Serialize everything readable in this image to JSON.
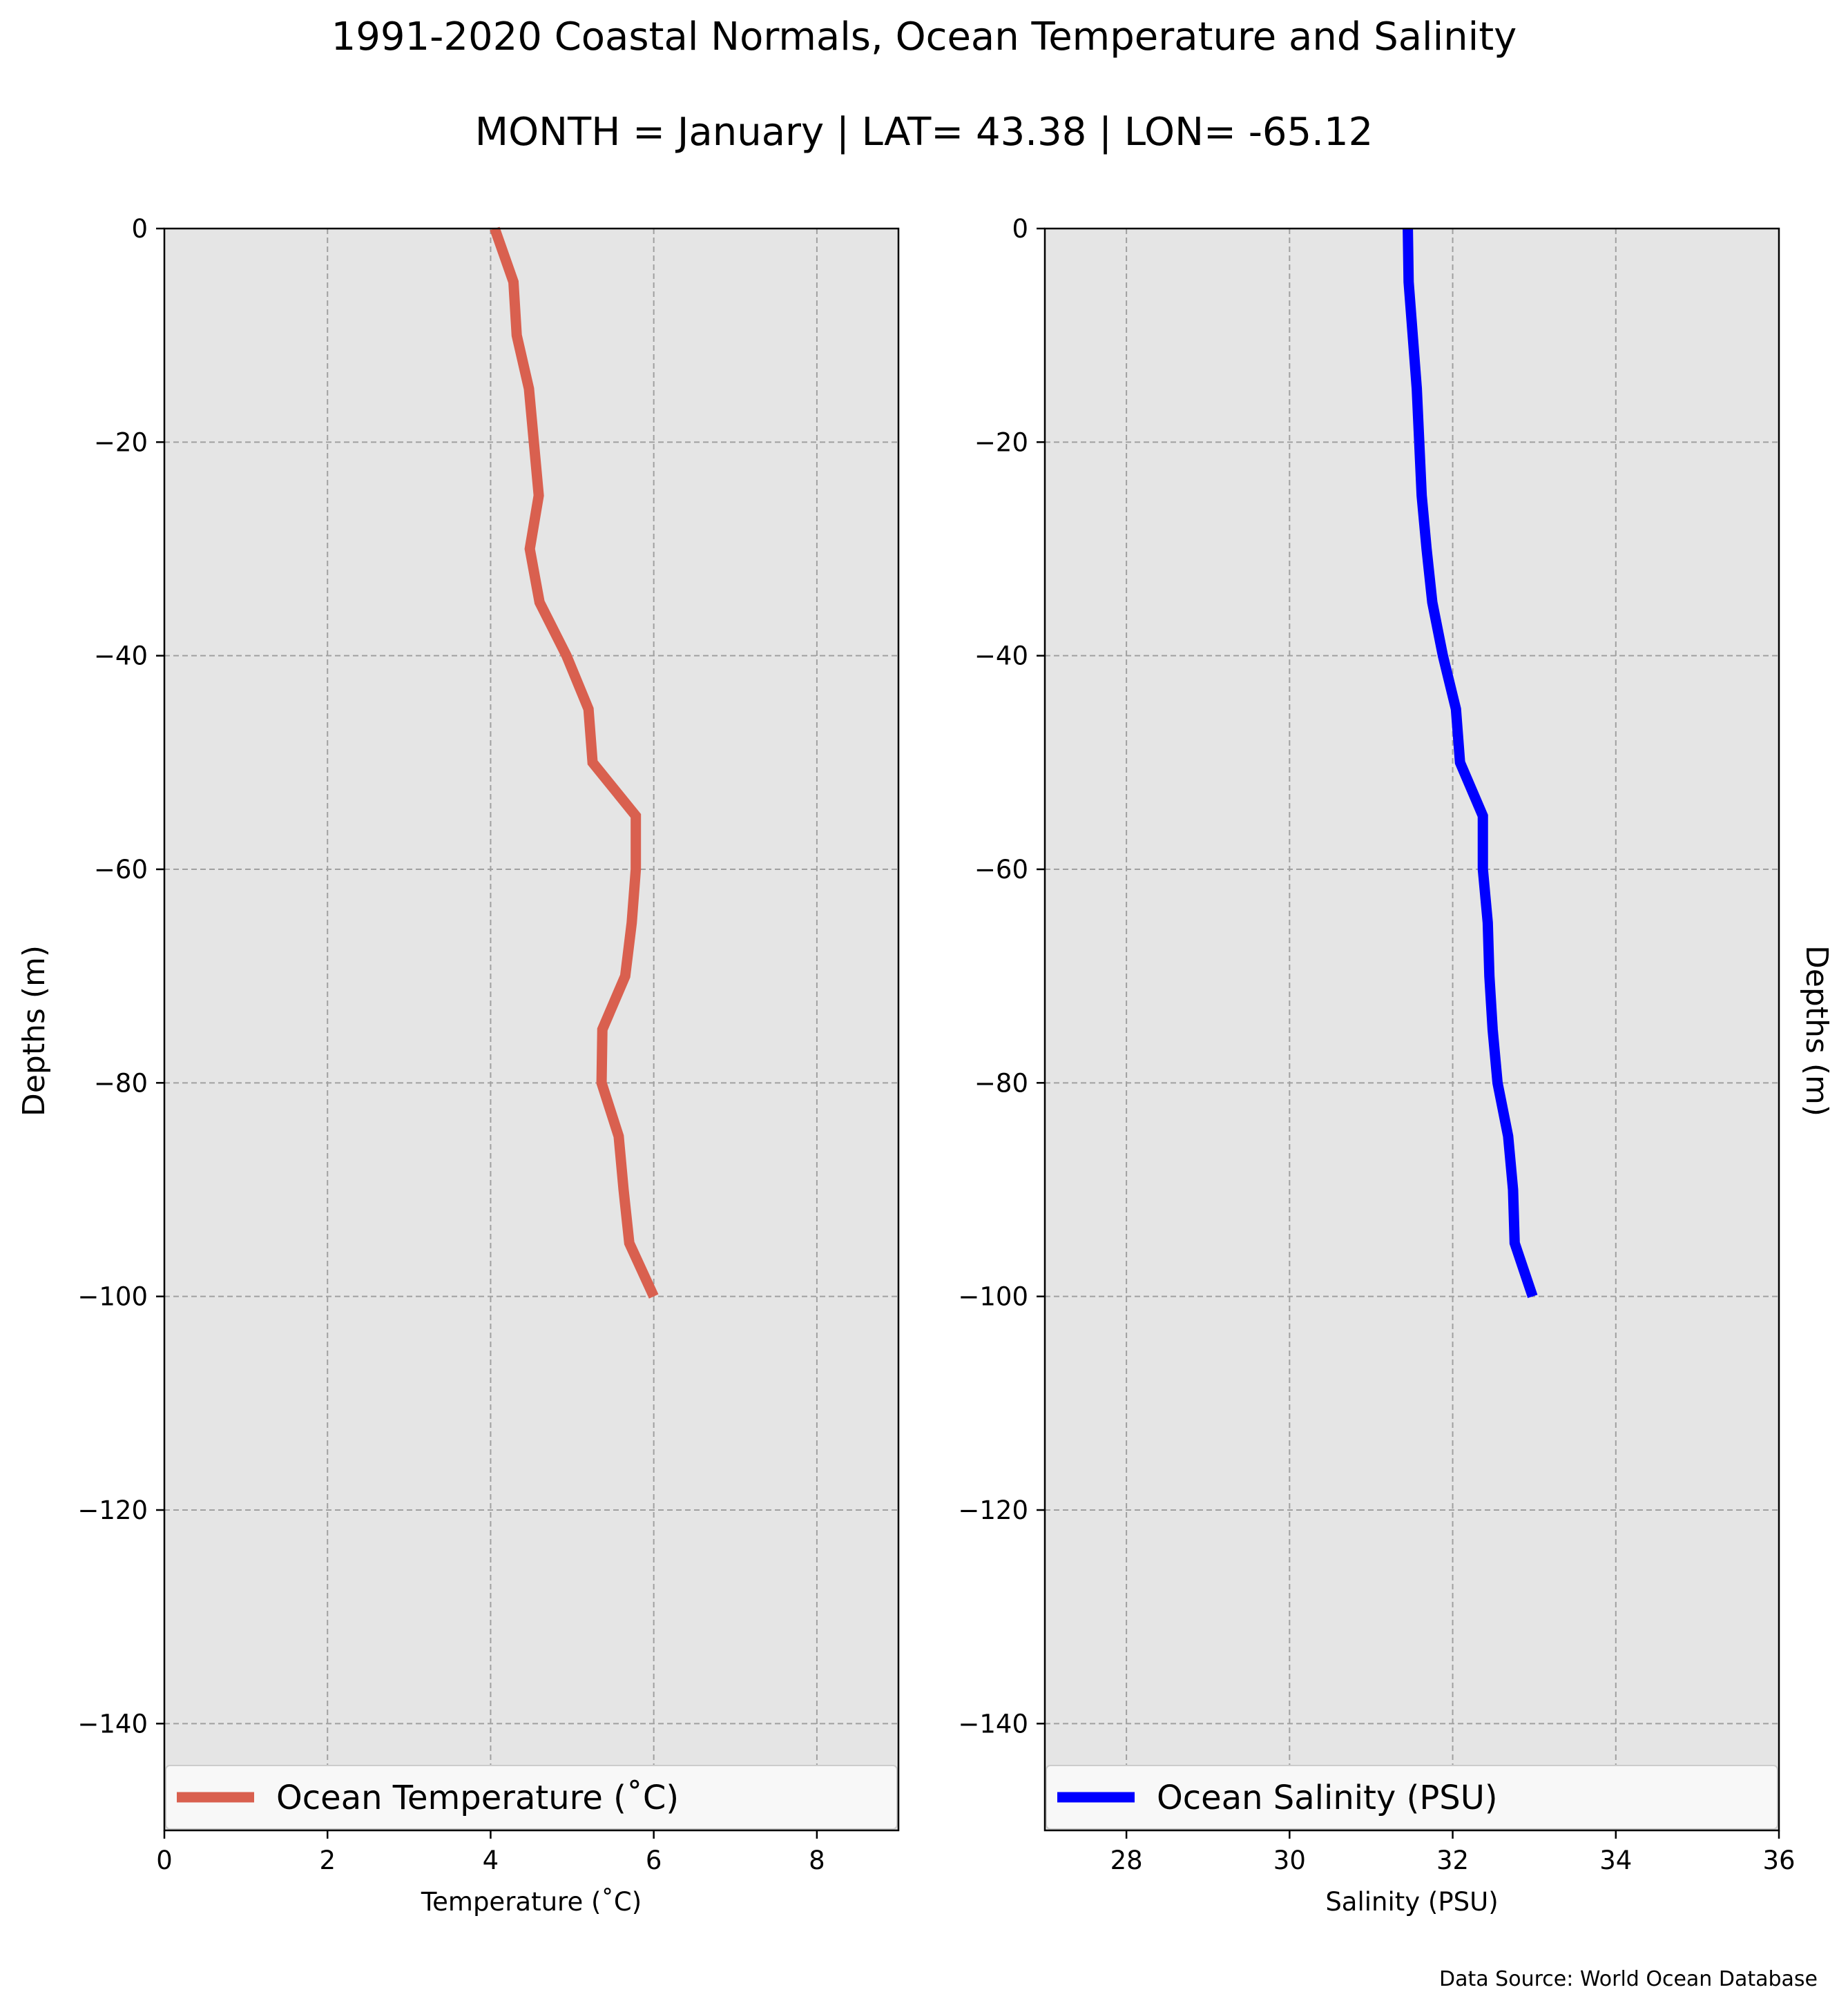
{
  "title": "1991-2020 Coastal Normals, Ocean Temperature and Salinity",
  "subtitle": "MONTH = January | LAT= 43.38 | LON= -65.12",
  "source": "Data Source: World Ocean Database",
  "colors": {
    "temperature": "#d9604f",
    "salinity": "#0000ff",
    "plot_bg": "#e5e5e5",
    "grid": "#a0a0a0"
  },
  "chart_data": [
    {
      "type": "line",
      "xlabel": "Temperature ($^\\circ$C)",
      "xlabel_display": "Temperature (˚C)",
      "ylabel": "Depths (m)",
      "xlim": [
        0,
        9
      ],
      "ylim": [
        -150,
        0
      ],
      "xticks": [
        0,
        2,
        4,
        6,
        8
      ],
      "yticks": [
        0,
        -20,
        -40,
        -60,
        -80,
        -100,
        -120,
        -140
      ],
      "grid": true,
      "legend_placement": "bottom",
      "series": [
        {
          "name": "Ocean Temperature (˚C)",
          "depth": [
            0,
            -5,
            -10,
            -15,
            -20,
            -25,
            -30,
            -35,
            -40,
            -45,
            -50,
            -55,
            -60,
            -65,
            -70,
            -75,
            -80,
            -85,
            -90,
            -95,
            -100
          ],
          "values": [
            4.05,
            4.28,
            4.32,
            4.47,
            4.53,
            4.59,
            4.48,
            4.6,
            4.93,
            5.2,
            5.25,
            5.78,
            5.78,
            5.73,
            5.65,
            5.37,
            5.36,
            5.57,
            5.63,
            5.7,
            6.0
          ]
        }
      ]
    },
    {
      "type": "line",
      "xlabel": "Salinity (PSU)",
      "ylabel": "Depths (m)",
      "xlim": [
        27,
        36
      ],
      "ylim": [
        -150,
        0
      ],
      "xticks": [
        28,
        30,
        32,
        34,
        36
      ],
      "yticks": [
        0,
        -20,
        -40,
        -60,
        -80,
        -100,
        -120,
        -140
      ],
      "grid": true,
      "legend_placement": "bottom",
      "series": [
        {
          "name": "Ocean Salinity (PSU)",
          "depth": [
            0,
            -5,
            -10,
            -15,
            -20,
            -25,
            -30,
            -35,
            -40,
            -45,
            -50,
            -55,
            -60,
            -65,
            -70,
            -75,
            -80,
            -85,
            -90,
            -95,
            -100
          ],
          "values": [
            31.45,
            31.46,
            31.51,
            31.56,
            31.59,
            31.62,
            31.68,
            31.75,
            31.88,
            32.04,
            32.09,
            32.37,
            32.37,
            32.43,
            32.45,
            32.49,
            32.55,
            32.68,
            32.74,
            32.76,
            32.98
          ]
        }
      ]
    }
  ]
}
